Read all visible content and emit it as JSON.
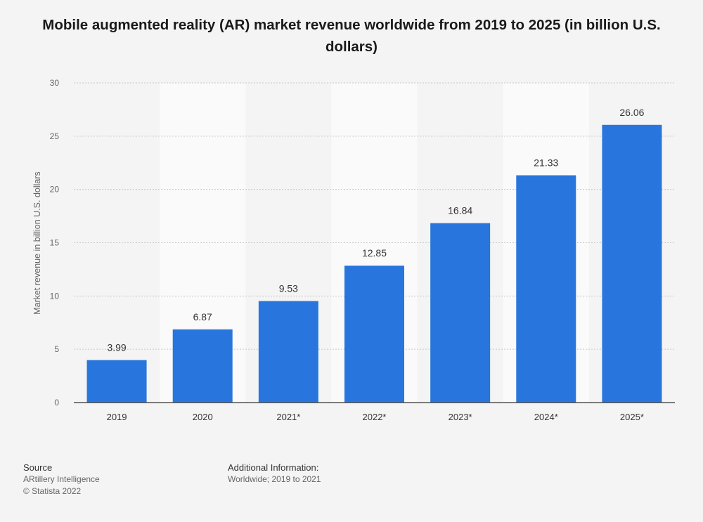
{
  "chart_data": {
    "type": "bar",
    "title": "Mobile augmented reality (AR) market revenue worldwide from 2019 to 2025 (in billion U.S. dollars)",
    "xlabel": "",
    "ylabel": "Market revenue in billion U.S. dollars",
    "ylim": [
      0,
      30
    ],
    "yticks": [
      0,
      5,
      10,
      15,
      20,
      25,
      30
    ],
    "categories": [
      "2019",
      "2020",
      "2021*",
      "2022*",
      "2023*",
      "2024*",
      "2025*"
    ],
    "values": [
      3.99,
      6.87,
      9.53,
      12.85,
      16.84,
      21.33,
      26.06
    ],
    "value_labels": [
      "3.99",
      "6.87",
      "9.53",
      "12.85",
      "16.84",
      "21.33",
      "26.06"
    ],
    "grid": true,
    "colors": {
      "bar": "#2876dd",
      "grid": "#c8c8c8",
      "band": "#fafafa",
      "axis": "#333333"
    }
  },
  "footer": {
    "source_heading": "Source",
    "source_name": "ARtillery Intelligence",
    "copyright": "© Statista 2022",
    "info_heading": "Additional Information:",
    "info_text": "Worldwide; 2019 to 2021"
  }
}
